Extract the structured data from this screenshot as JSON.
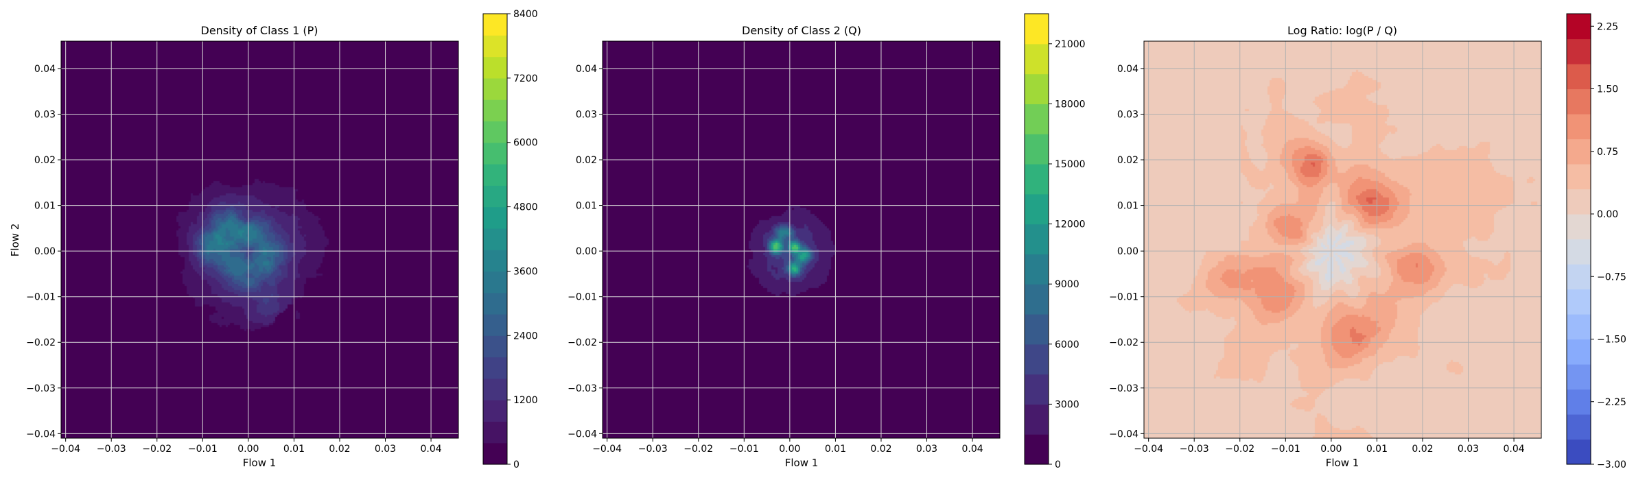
{
  "chart_data": [
    {
      "type": "heatmap",
      "title": "Density of Class 1 (P)",
      "xlabel": "Flow 1",
      "ylabel": "Flow 2",
      "xlim": [
        -0.041,
        0.046
      ],
      "ylim": [
        -0.041,
        0.046
      ],
      "x_ticks": [
        -0.04,
        -0.03,
        -0.02,
        -0.01,
        0.0,
        0.01,
        0.02,
        0.03,
        0.04
      ],
      "x_tick_labels": [
        "−0.04",
        "−0.03",
        "−0.02",
        "−0.01",
        "0.00",
        "0.01",
        "0.02",
        "0.03",
        "0.04"
      ],
      "y_ticks": [
        -0.04,
        -0.03,
        -0.02,
        -0.01,
        0.0,
        0.01,
        0.02,
        0.03,
        0.04
      ],
      "y_tick_labels": [
        "−0.04",
        "−0.03",
        "−0.02",
        "−0.01",
        "0.00",
        "0.01",
        "0.02",
        "0.03",
        "0.04"
      ],
      "grid": true,
      "colormap": "viridis",
      "colorbar": {
        "vmin": 0,
        "vmax": 8400,
        "levels": 21,
        "ticks": [
          0,
          1200,
          2400,
          3600,
          4800,
          6000,
          7200,
          8400
        ],
        "tick_labels": [
          "0",
          "1200",
          "2400",
          "3600",
          "4800",
          "6000",
          "7200",
          "8400"
        ]
      },
      "density_blobs": [
        {
          "x": 0.0,
          "y": 0.0,
          "spread": 0.012,
          "peak": 1200
        },
        {
          "x": -0.008,
          "y": 0.0,
          "spread": 0.0025,
          "peak": 2600
        },
        {
          "x": -0.004,
          "y": 0.005,
          "spread": 0.003,
          "peak": 2000
        },
        {
          "x": 0.004,
          "y": -0.002,
          "spread": 0.003,
          "peak": 1900
        },
        {
          "x": 0.002,
          "y": 0.004,
          "spread": 0.0025,
          "peak": 1700
        },
        {
          "x": -0.002,
          "y": -0.004,
          "spread": 0.003,
          "peak": 1500
        },
        {
          "x": 0.005,
          "y": -0.011,
          "spread": 0.003,
          "peak": 900
        }
      ]
    },
    {
      "type": "heatmap",
      "title": "Density of Class 2 (Q)",
      "xlabel": "Flow 1",
      "ylabel": "",
      "xlim": [
        -0.041,
        0.046
      ],
      "ylim": [
        -0.041,
        0.046
      ],
      "x_ticks": [
        -0.04,
        -0.03,
        -0.02,
        -0.01,
        0.0,
        0.01,
        0.02,
        0.03,
        0.04
      ],
      "x_tick_labels": [
        "−0.04",
        "−0.03",
        "−0.02",
        "−0.01",
        "0.00",
        "0.01",
        "0.02",
        "0.03",
        "0.04"
      ],
      "y_ticks": [
        -0.04,
        -0.03,
        -0.02,
        -0.01,
        0.0,
        0.01,
        0.02,
        0.03,
        0.04
      ],
      "y_tick_labels": [
        "−0.04",
        "−0.03",
        "−0.02",
        "−0.01",
        "0.00",
        "0.01",
        "0.02",
        "0.03",
        "0.04"
      ],
      "grid": true,
      "colormap": "viridis",
      "colorbar": {
        "vmin": 0,
        "vmax": 22500,
        "levels": 15,
        "ticks": [
          0,
          3000,
          6000,
          9000,
          12000,
          15000,
          18000,
          21000
        ],
        "tick_labels": [
          "0",
          "3000",
          "6000",
          "9000",
          "12000",
          "15000",
          "18000",
          "21000"
        ]
      },
      "density_blobs": [
        {
          "x": 0.0,
          "y": 0.0,
          "spread": 0.0065,
          "peak": 4200
        },
        {
          "x": -0.001,
          "y": 0.004,
          "spread": 0.0012,
          "peak": 9000
        },
        {
          "x": -0.003,
          "y": 0.001,
          "spread": 0.001,
          "peak": 12000
        },
        {
          "x": 0.001,
          "y": 0.001,
          "spread": 0.0009,
          "peak": 14000
        },
        {
          "x": 0.003,
          "y": -0.001,
          "spread": 0.0012,
          "peak": 10000
        },
        {
          "x": 0.001,
          "y": -0.004,
          "spread": 0.001,
          "peak": 9000
        }
      ]
    },
    {
      "type": "heatmap",
      "title": "Log Ratio: log(P / Q)",
      "xlabel": "Flow 1",
      "ylabel": "",
      "xlim": [
        -0.041,
        0.046
      ],
      "ylim": [
        -0.041,
        0.046
      ],
      "x_ticks": [
        -0.04,
        -0.03,
        -0.02,
        -0.01,
        0.0,
        0.01,
        0.02,
        0.03,
        0.04
      ],
      "x_tick_labels": [
        "−0.04",
        "−0.03",
        "−0.02",
        "−0.01",
        "0.00",
        "0.01",
        "0.02",
        "0.03",
        "0.04"
      ],
      "y_ticks": [
        -0.04,
        -0.03,
        -0.02,
        -0.01,
        0.0,
        0.01,
        0.02,
        0.03,
        0.04
      ],
      "y_tick_labels": [
        "−0.04",
        "−0.03",
        "−0.02",
        "−0.01",
        "0.00",
        "0.01",
        "0.02",
        "0.03",
        "0.04"
      ],
      "grid": true,
      "colormap": "coolwarm",
      "colorbar": {
        "vmin": -3.0,
        "vmax": 2.4,
        "levels": 18,
        "ticks": [
          -3.0,
          -2.25,
          -1.5,
          -0.75,
          0.0,
          0.75,
          1.5,
          2.25
        ],
        "tick_labels": [
          "−3.00",
          "−2.25",
          "−1.50",
          "−0.75",
          "0.00",
          "0.75",
          "1.50",
          "2.25"
        ]
      },
      "log_ratio_features": [
        {
          "x": 0.0,
          "y": 0.0,
          "spread": 0.0065,
          "value": -0.9
        },
        {
          "x": -0.018,
          "y": 0.01,
          "spread": 0.003,
          "value": -0.2
        },
        {
          "x": -0.008,
          "y": 0.005,
          "spread": 0.004,
          "value": 0.9
        },
        {
          "x": 0.009,
          "y": 0.011,
          "spread": 0.004,
          "value": 1.3
        },
        {
          "x": -0.004,
          "y": 0.019,
          "spread": 0.0035,
          "value": 1.1
        },
        {
          "x": 0.006,
          "y": -0.018,
          "spread": 0.0045,
          "value": 1.0
        },
        {
          "x": -0.012,
          "y": -0.008,
          "spread": 0.004,
          "value": 0.9
        },
        {
          "x": 0.018,
          "y": -0.005,
          "spread": 0.004,
          "value": 0.9
        },
        {
          "x": -0.022,
          "y": -0.006,
          "spread": 0.004,
          "value": 0.8
        }
      ]
    }
  ]
}
